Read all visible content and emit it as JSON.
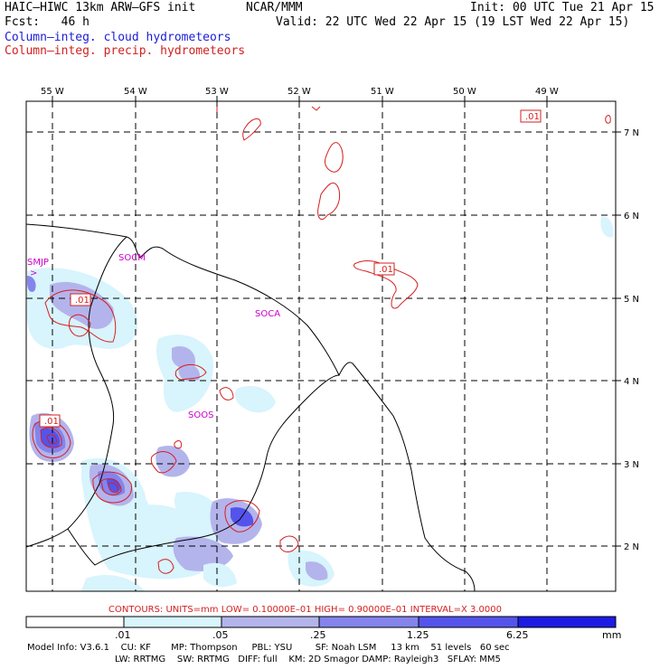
{
  "header": {
    "model": "HAIC–HIWC 13km ARW–GFS init",
    "center": "NCAR/MMM",
    "init": "Init: 00 UTC Tue 21 Apr 15",
    "fcst": "Fcst:   46 h",
    "valid": "Valid: 22 UTC Wed 22 Apr 15 (19 LST Wed 22 Apr 15)",
    "field1": "Column–integ. cloud hydrometeors",
    "field2": "Column–integ. precip. hydrometeors",
    "field1_color": "#1c1cd6",
    "field2_color": "#d42020"
  },
  "map": {
    "lon_labels": [
      "55 W",
      "54 W",
      "53 W",
      "52 W",
      "51 W",
      "50 W",
      "49 W"
    ],
    "lat_labels": [
      "7 N",
      "6 N",
      "5 N",
      "4 N",
      "3 N",
      "2 N"
    ],
    "stations": [
      "SMJP",
      "SOCM",
      "SOCA",
      "SOOS"
    ],
    "contour_labels": [
      ".01",
      ".01",
      ".01",
      ".01"
    ]
  },
  "contours_info": "CONTOURS:  UNITS=mm  LOW= 0.10000E–01  HIGH= 0.90000E–01  INTERVAL=X  3.0000",
  "colorbar": {
    "ticks": [
      ".01",
      ".05",
      ".25",
      "1.25",
      "6.25"
    ],
    "units": "mm",
    "colors": [
      "#ffffff",
      "#d8f4fc",
      "#b4b4ec",
      "#8484ec",
      "#5454ec",
      "#1c1ce4"
    ]
  },
  "model_info": {
    "line1": "Model Info: V3.6.1    CU: KF       MP: Thompson     PBL: YSU        SF: Noah LSM     13 km    51 levels   60 sec",
    "line2": "LW: RRTMG    SW: RRTMG   DIFF: full    KM: 2D Smagor DAMP: Rayleigh3   SFLAY: MM5"
  }
}
